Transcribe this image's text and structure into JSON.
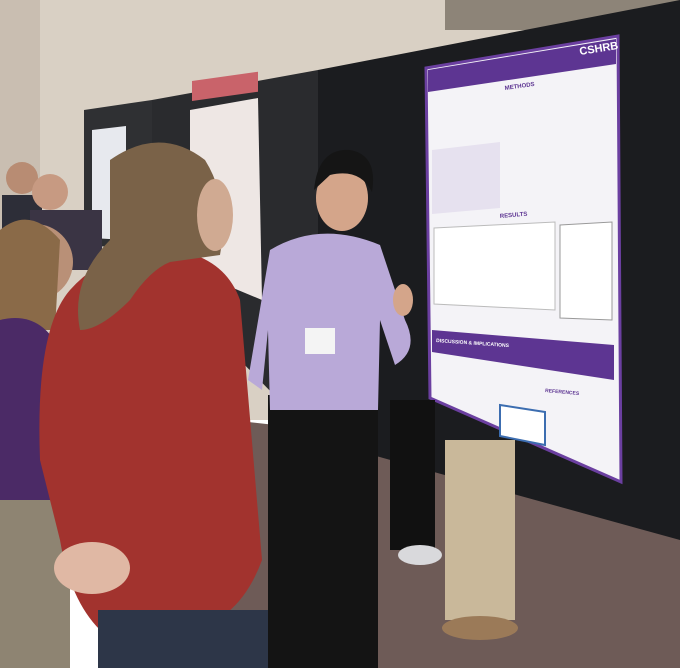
{
  "poster": {
    "logo": "CSHRB",
    "sections": [
      "METHODS",
      "RESULTS",
      "DISCUSSION & IMPLICATIONS",
      "REFERENCES"
    ]
  }
}
